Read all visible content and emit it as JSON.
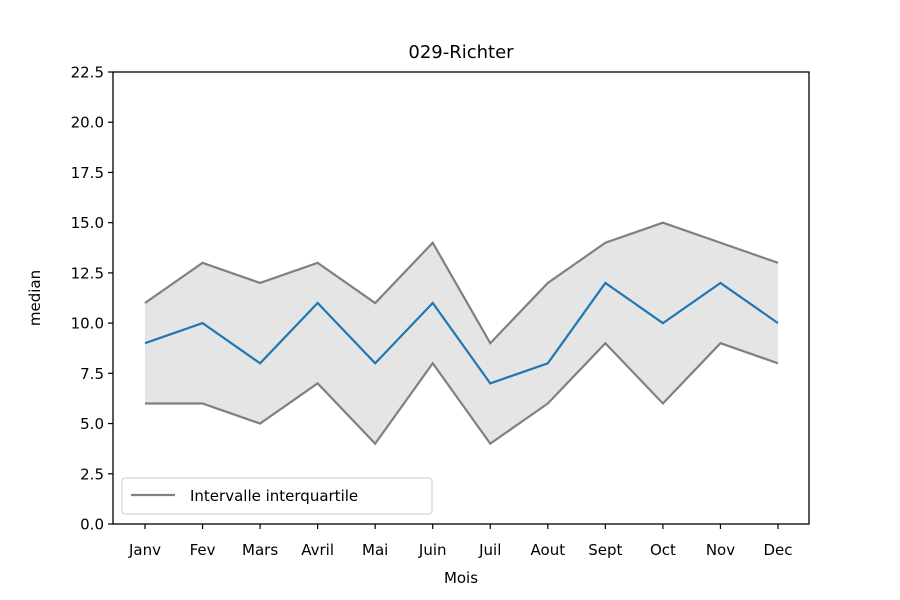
{
  "chart_data": {
    "type": "line",
    "title": "029-Richter",
    "xlabel": "Mois",
    "ylabel": "median",
    "categories": [
      "Janv",
      "Fev",
      "Mars",
      "Avril",
      "Mai",
      "Juin",
      "Juil",
      "Aout",
      "Sept",
      "Oct",
      "Nov",
      "Dec"
    ],
    "ylim": [
      0,
      22.5
    ],
    "yticks": [
      "0.0",
      "2.5",
      "5.0",
      "7.5",
      "10.0",
      "12.5",
      "15.0",
      "17.5",
      "20.0",
      "22.5"
    ],
    "series": [
      {
        "values": [
          9,
          10,
          8,
          11,
          8,
          11,
          7,
          8,
          12,
          10,
          12,
          10
        ],
        "color": "#1f77b4"
      }
    ],
    "band": {
      "name": "Intervalle interquartile",
      "lower": [
        6,
        6,
        5,
        7,
        4,
        8,
        4,
        6,
        9,
        6,
        9,
        8
      ],
      "upper": [
        11,
        13,
        12,
        13,
        11,
        14,
        9,
        12,
        14,
        15,
        14,
        13
      ],
      "line_color": "#808080",
      "fill_color": "#e5e5e5"
    },
    "grid": false,
    "legend_position": "lower-left"
  }
}
